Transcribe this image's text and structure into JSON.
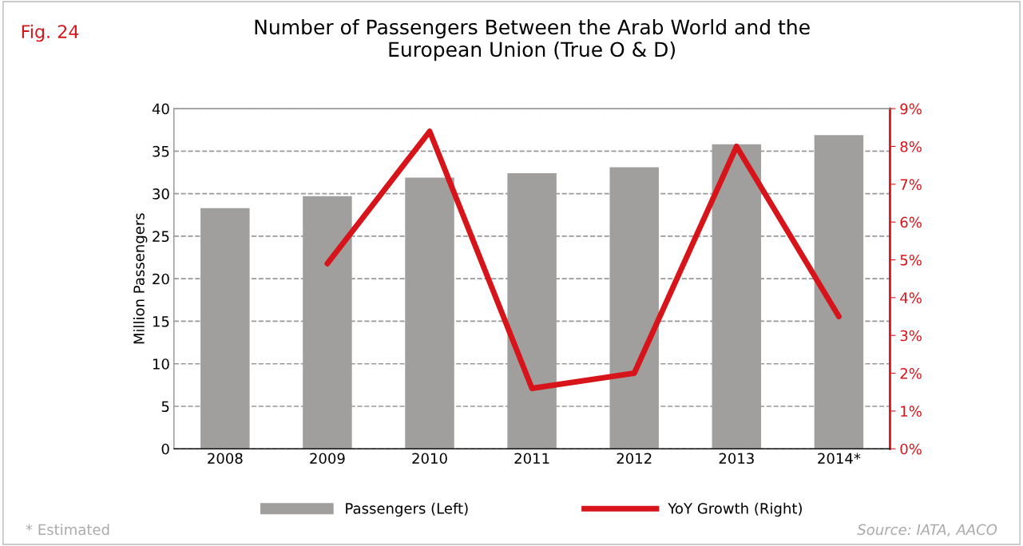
{
  "chart_data": {
    "type": "bar",
    "title": "Number of Passengers Between the Arab World and the\nEuropean Union (True O & D)",
    "categories": [
      "2008",
      "2009",
      "2010",
      "2011",
      "2012",
      "2013",
      "2014*"
    ],
    "ylabel": "Million Passengers",
    "series": [
      {
        "name": "Passengers (Left)",
        "color": "#a09f9e",
        "values": [
          28.3,
          29.7,
          31.9,
          32.4,
          33.1,
          35.8,
          36.9
        ]
      },
      {
        "name": "YoY Growth (Right)",
        "type": "line",
        "axis": "y2",
        "color": "#d7141a",
        "values": [
          null,
          4.9,
          8.4,
          1.6,
          2.0,
          8.0,
          3.5
        ]
      }
    ],
    "ylim": [
      0,
      40
    ],
    "yticks": [
      0,
      5,
      10,
      15,
      20,
      25,
      30,
      35,
      40
    ],
    "y2lim": [
      0,
      9
    ],
    "y2ticks": [
      {
        "value": 0,
        "label": "0%"
      },
      {
        "value": 1,
        "label": "1%"
      },
      {
        "value": 2,
        "label": "2%"
      },
      {
        "value": 3,
        "label": "3%"
      },
      {
        "value": 4,
        "label": "4%"
      },
      {
        "value": 5,
        "label": "5%"
      },
      {
        "value": 6,
        "label": "6%"
      },
      {
        "value": 7,
        "label": "7%"
      },
      {
        "value": 8,
        "label": "8%"
      },
      {
        "value": 9,
        "label": "9%"
      }
    ],
    "grid": "y",
    "legend": "bottom",
    "line_style": "solid",
    "marker": "none",
    "annotations": [
      "Fig. 24",
      "* Estimated",
      "Source: IATA, AACO"
    ]
  }
}
